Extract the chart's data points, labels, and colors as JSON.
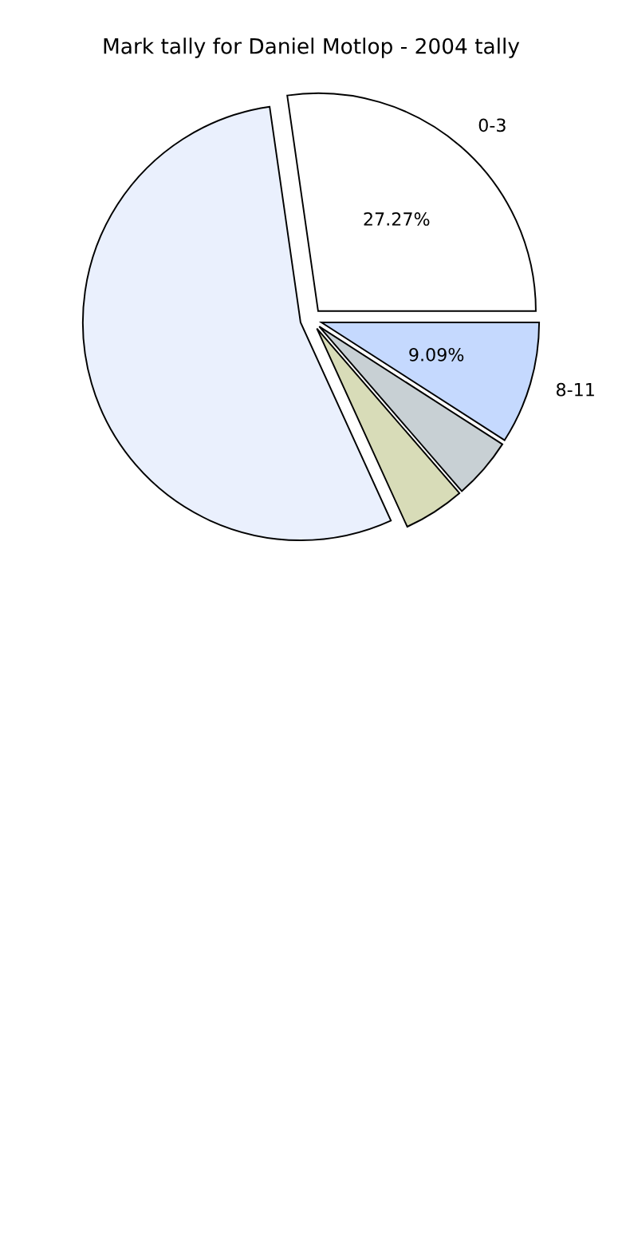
{
  "chart_data": {
    "type": "pie",
    "title": "Mark tally for Daniel Motlop - 2004 tally",
    "categories": [
      "0-3",
      null,
      null,
      null,
      "8-11"
    ],
    "values": [
      27.27,
      54.55,
      4.55,
      4.55,
      9.09
    ],
    "colors": [
      "#ffffff",
      "#eaf0fd",
      "#d8dcb8",
      "#c8d0d4",
      "#c5d9fe"
    ],
    "value_labels": [
      "27.27%",
      null,
      null,
      null,
      "9.09%"
    ]
  }
}
